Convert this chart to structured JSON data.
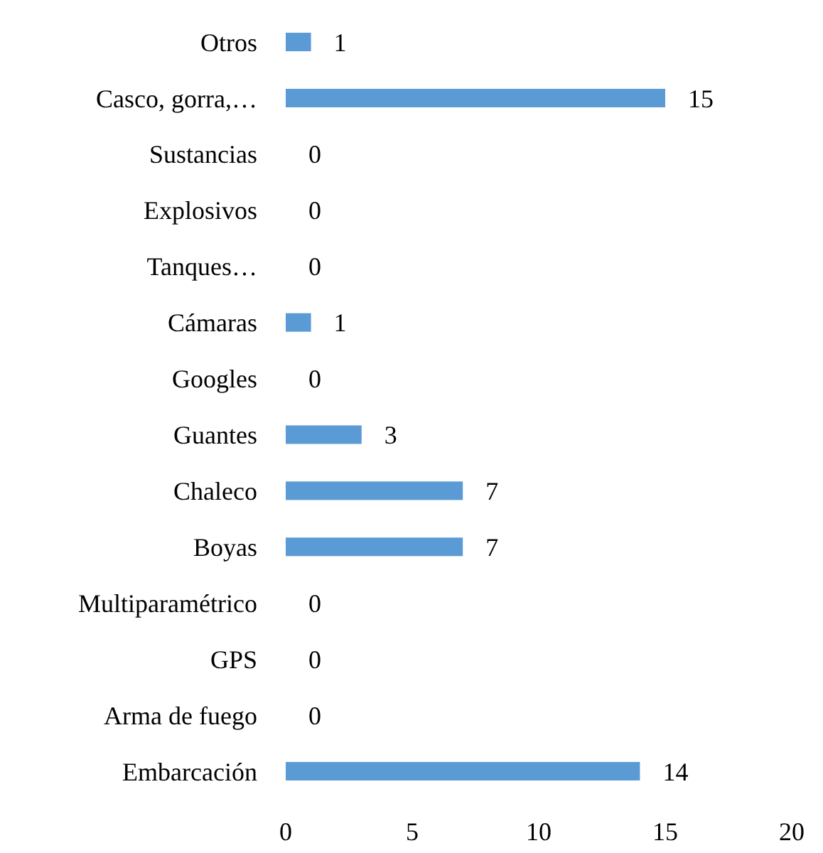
{
  "chart_data": {
    "type": "bar",
    "orientation": "horizontal",
    "categories": [
      "Otros",
      "Casco, gorra,…",
      "Sustancias",
      "Explosivos",
      "Tanques…",
      "Cámaras",
      "Googles",
      "Guantes",
      "Chaleco",
      "Boyas",
      "Multiparamétrico",
      "GPS",
      "Arma de fuego",
      "Embarcación"
    ],
    "values": [
      1,
      15,
      0,
      0,
      0,
      1,
      0,
      3,
      7,
      7,
      0,
      0,
      0,
      14
    ],
    "color": "#5b9bd5",
    "xlim": [
      0,
      20
    ],
    "xticks": [
      0,
      5,
      10,
      15,
      20
    ],
    "data_labels": true
  }
}
